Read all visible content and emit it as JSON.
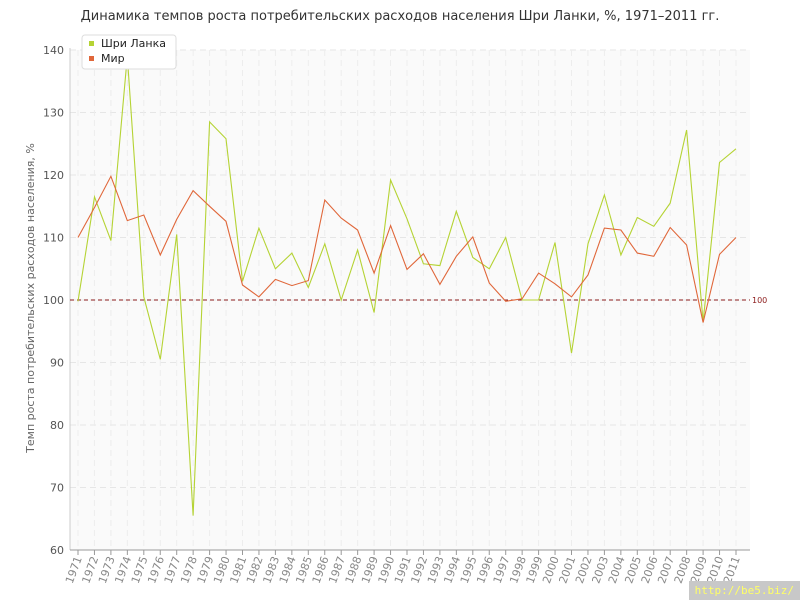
{
  "chart_data": {
    "type": "line",
    "title": "Динамика темпов роста потребительских расходов населения Шри Ланки, %, 1971–2011 гг.",
    "ylabel": "Темп роста потребительских расходов населения, %",
    "xlabel": "",
    "ylim": [
      60,
      140
    ],
    "yticks": [
      60,
      70,
      80,
      90,
      100,
      110,
      120,
      130,
      140
    ],
    "grid": true,
    "legend": "top-left",
    "reference_line": {
      "value": 100,
      "label": "100",
      "color": "#8b1a1a"
    },
    "x": [
      "1971",
      "1972",
      "1973",
      "1974",
      "1975",
      "1976",
      "1977",
      "1978",
      "1979",
      "1980",
      "1981",
      "1982",
      "1983",
      "1984",
      "1985",
      "1986",
      "1987",
      "1988",
      "1989",
      "1990",
      "1991",
      "1992",
      "1993",
      "1994",
      "1995",
      "1996",
      "1997",
      "1998",
      "1999",
      "2000",
      "2001",
      "2002",
      "2003",
      "2004",
      "2005",
      "2006",
      "2007",
      "2008",
      "2009",
      "2010",
      "2011"
    ],
    "series": [
      {
        "name": "Шри Ланка",
        "color": "#b5d334",
        "values": [
          99.8,
          116.5,
          109.5,
          139.0,
          100.5,
          90.5,
          110.5,
          65.5,
          128.5,
          125.8,
          103.0,
          111.5,
          105.0,
          107.5,
          102.0,
          109.0,
          100.0,
          108.0,
          98.0,
          119.2,
          113.0,
          105.8,
          105.5,
          114.2,
          106.8,
          105.0,
          110.0,
          100.0,
          100.0,
          109.2,
          91.5,
          109.0,
          116.8,
          107.2,
          113.2,
          111.8,
          115.5,
          127.2,
          96.5,
          122.0,
          124.2
        ]
      },
      {
        "name": "Мир",
        "color": "#e0673a",
        "values": [
          110.0,
          114.8,
          119.8,
          112.7,
          113.6,
          107.2,
          112.9,
          117.5,
          115.0,
          112.6,
          102.4,
          100.5,
          103.3,
          102.3,
          103.1,
          116.0,
          113.1,
          111.2,
          104.3,
          111.9,
          104.9,
          107.4,
          102.5,
          107.0,
          110.1,
          102.7,
          99.8,
          100.2,
          104.3,
          102.6,
          100.5,
          104.0,
          111.5,
          111.2,
          107.5,
          107.0,
          111.6,
          108.8,
          96.4,
          107.3,
          110.0
        ]
      }
    ]
  },
  "watermark": "http://be5.biz/"
}
